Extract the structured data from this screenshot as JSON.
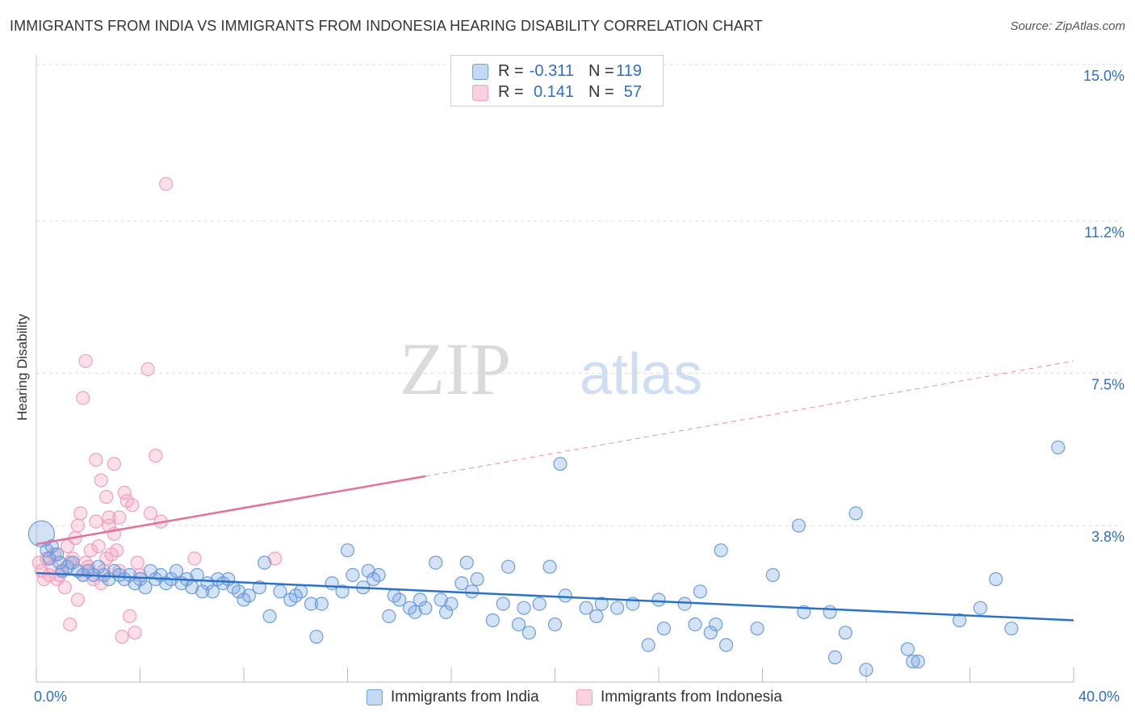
{
  "title": "IMMIGRANTS FROM INDIA VS IMMIGRANTS FROM INDONESIA HEARING DISABILITY CORRELATION CHART",
  "source": "Source: ZipAtlas.com",
  "watermark": {
    "zip": "ZIP",
    "atlas": "atlas"
  },
  "legend": {
    "india": {
      "r_label": "R =",
      "r_value": "-0.311",
      "n_label": "N =",
      "n_value": "119"
    },
    "indonesia": {
      "r_label": "R =",
      "r_value": "0.141",
      "n_label": "N =",
      "n_value": "57"
    }
  },
  "colors": {
    "india": "#6fa0e0",
    "india_line": "#2a72c9",
    "indonesia": "#f3a3bf",
    "indonesia_line": "#e5709a",
    "tick_label": "#2e6fc4",
    "grid": "#dddddd"
  },
  "chart_data": {
    "type": "scatter",
    "title": "IMMIGRANTS FROM INDIA VS IMMIGRANTS FROM INDONESIA HEARING DISABILITY CORRELATION CHART",
    "xlabel": "",
    "ylabel": "Hearing Disability",
    "xlim": [
      0,
      40
    ],
    "ylim": [
      0,
      15
    ],
    "x_tick_labels": [
      "0.0%",
      "40.0%"
    ],
    "y_ticks": [
      3.8,
      7.5,
      11.2,
      15.0
    ],
    "y_tick_labels": [
      "3.8%",
      "7.5%",
      "11.2%",
      "15.0%"
    ],
    "grid": true,
    "legend_position": "top-center",
    "series": [
      {
        "name": "Immigrants from India",
        "trend": {
          "x": [
            0,
            40
          ],
          "y": [
            2.65,
            1.5
          ]
        },
        "points": [
          [
            0.2,
            3.6
          ],
          [
            0.4,
            3.2
          ],
          [
            0.5,
            3.0
          ],
          [
            0.6,
            3.3
          ],
          [
            0.8,
            3.1
          ],
          [
            0.9,
            2.9
          ],
          [
            1.0,
            2.7
          ],
          [
            1.2,
            2.8
          ],
          [
            1.4,
            2.9
          ],
          [
            1.6,
            2.7
          ],
          [
            1.8,
            2.6
          ],
          [
            2.0,
            2.7
          ],
          [
            2.2,
            2.6
          ],
          [
            2.4,
            2.8
          ],
          [
            2.6,
            2.6
          ],
          [
            2.8,
            2.5
          ],
          [
            3.0,
            2.7
          ],
          [
            3.2,
            2.6
          ],
          [
            3.4,
            2.5
          ],
          [
            3.6,
            2.6
          ],
          [
            3.8,
            2.4
          ],
          [
            4.0,
            2.5
          ],
          [
            4.2,
            2.3
          ],
          [
            4.4,
            2.7
          ],
          [
            4.6,
            2.5
          ],
          [
            4.8,
            2.6
          ],
          [
            5.0,
            2.4
          ],
          [
            5.2,
            2.5
          ],
          [
            5.4,
            2.7
          ],
          [
            5.6,
            2.4
          ],
          [
            5.8,
            2.5
          ],
          [
            6.0,
            2.3
          ],
          [
            6.2,
            2.6
          ],
          [
            6.4,
            2.2
          ],
          [
            6.6,
            2.4
          ],
          [
            6.8,
            2.2
          ],
          [
            7.0,
            2.5
          ],
          [
            7.2,
            2.4
          ],
          [
            7.4,
            2.5
          ],
          [
            7.6,
            2.3
          ],
          [
            7.8,
            2.2
          ],
          [
            8.0,
            2.0
          ],
          [
            8.2,
            2.1
          ],
          [
            8.6,
            2.3
          ],
          [
            8.8,
            2.9
          ],
          [
            9.0,
            1.6
          ],
          [
            9.4,
            2.2
          ],
          [
            9.8,
            2.0
          ],
          [
            10.0,
            2.1
          ],
          [
            10.2,
            2.2
          ],
          [
            10.6,
            1.9
          ],
          [
            10.8,
            1.1
          ],
          [
            11.0,
            1.9
          ],
          [
            11.4,
            2.4
          ],
          [
            11.8,
            2.2
          ],
          [
            12.0,
            3.2
          ],
          [
            12.2,
            2.6
          ],
          [
            12.6,
            2.3
          ],
          [
            12.8,
            2.7
          ],
          [
            13.0,
            2.5
          ],
          [
            13.2,
            2.6
          ],
          [
            13.6,
            1.6
          ],
          [
            13.8,
            2.1
          ],
          [
            14.0,
            2.0
          ],
          [
            14.4,
            1.8
          ],
          [
            14.6,
            1.7
          ],
          [
            14.8,
            2.0
          ],
          [
            15.0,
            1.8
          ],
          [
            15.4,
            2.9
          ],
          [
            15.6,
            2.0
          ],
          [
            15.8,
            1.7
          ],
          [
            16.0,
            1.9
          ],
          [
            16.4,
            2.4
          ],
          [
            16.6,
            2.9
          ],
          [
            16.8,
            2.2
          ],
          [
            17.0,
            2.5
          ],
          [
            17.6,
            1.5
          ],
          [
            18.0,
            1.9
          ],
          [
            18.2,
            2.8
          ],
          [
            18.6,
            1.4
          ],
          [
            18.8,
            1.8
          ],
          [
            19.0,
            1.2
          ],
          [
            19.4,
            1.9
          ],
          [
            19.8,
            2.8
          ],
          [
            20.0,
            1.4
          ],
          [
            20.2,
            5.3
          ],
          [
            20.4,
            2.1
          ],
          [
            21.2,
            1.8
          ],
          [
            21.6,
            1.6
          ],
          [
            21.8,
            1.9
          ],
          [
            22.4,
            1.8
          ],
          [
            23.0,
            1.9
          ],
          [
            23.6,
            0.9
          ],
          [
            24.0,
            2.0
          ],
          [
            24.2,
            1.3
          ],
          [
            25.0,
            1.9
          ],
          [
            25.4,
            1.4
          ],
          [
            25.6,
            2.2
          ],
          [
            26.0,
            1.2
          ],
          [
            26.2,
            1.4
          ],
          [
            26.4,
            3.2
          ],
          [
            26.6,
            0.9
          ],
          [
            27.8,
            1.3
          ],
          [
            28.4,
            2.6
          ],
          [
            29.4,
            3.8
          ],
          [
            29.6,
            1.7
          ],
          [
            30.6,
            1.7
          ],
          [
            30.8,
            0.6
          ],
          [
            31.2,
            1.2
          ],
          [
            31.6,
            4.1
          ],
          [
            32.0,
            0.3
          ],
          [
            33.6,
            0.8
          ],
          [
            33.8,
            0.5
          ],
          [
            34.0,
            0.5
          ],
          [
            35.6,
            1.5
          ],
          [
            36.4,
            1.8
          ],
          [
            37.0,
            2.5
          ],
          [
            37.6,
            1.3
          ],
          [
            39.4,
            5.7
          ]
        ]
      },
      {
        "name": "Immigrants from Indonesia",
        "trend": {
          "x": [
            0,
            15
          ],
          "y": [
            3.35,
            5.0
          ]
        },
        "trend_dashed": {
          "x": [
            15,
            40
          ],
          "y": [
            5.0,
            7.8
          ]
        },
        "points": [
          [
            0.1,
            2.9
          ],
          [
            0.2,
            2.7
          ],
          [
            0.3,
            2.5
          ],
          [
            0.4,
            3.0
          ],
          [
            0.5,
            2.6
          ],
          [
            0.6,
            2.8
          ],
          [
            0.7,
            3.1
          ],
          [
            0.8,
            2.5
          ],
          [
            0.9,
            2.6
          ],
          [
            1.0,
            2.7
          ],
          [
            1.1,
            2.3
          ],
          [
            1.2,
            3.3
          ],
          [
            1.3,
            2.9
          ],
          [
            1.4,
            3.0
          ],
          [
            1.5,
            3.5
          ],
          [
            1.6,
            3.8
          ],
          [
            1.7,
            4.1
          ],
          [
            1.8,
            2.6
          ],
          [
            1.9,
            2.9
          ],
          [
            2.0,
            2.8
          ],
          [
            2.1,
            3.2
          ],
          [
            2.2,
            2.5
          ],
          [
            2.3,
            3.9
          ],
          [
            2.4,
            3.3
          ],
          [
            2.5,
            2.4
          ],
          [
            2.6,
            2.7
          ],
          [
            2.7,
            3.0
          ],
          [
            2.8,
            4.0
          ],
          [
            2.9,
            3.1
          ],
          [
            3.0,
            3.6
          ],
          [
            3.1,
            3.2
          ],
          [
            3.2,
            2.7
          ],
          [
            3.3,
            1.1
          ],
          [
            3.4,
            4.6
          ],
          [
            3.5,
            4.4
          ],
          [
            3.6,
            1.6
          ],
          [
            3.7,
            4.3
          ],
          [
            3.8,
            1.2
          ],
          [
            3.9,
            2.9
          ],
          [
            4.0,
            2.6
          ],
          [
            1.3,
            1.4
          ],
          [
            1.6,
            2.0
          ],
          [
            1.8,
            6.9
          ],
          [
            1.9,
            7.8
          ],
          [
            2.3,
            5.4
          ],
          [
            2.5,
            4.9
          ],
          [
            2.7,
            4.5
          ],
          [
            2.8,
            3.8
          ],
          [
            3.0,
            5.3
          ],
          [
            3.2,
            4.0
          ],
          [
            4.3,
            7.6
          ],
          [
            4.4,
            4.1
          ],
          [
            4.6,
            5.5
          ],
          [
            4.8,
            3.9
          ],
          [
            5.0,
            12.1
          ],
          [
            6.1,
            3.0
          ],
          [
            9.2,
            3.0
          ]
        ]
      }
    ]
  },
  "bottom_legend": {
    "india": "Immigrants from India",
    "indonesia": "Immigrants from Indonesia"
  }
}
